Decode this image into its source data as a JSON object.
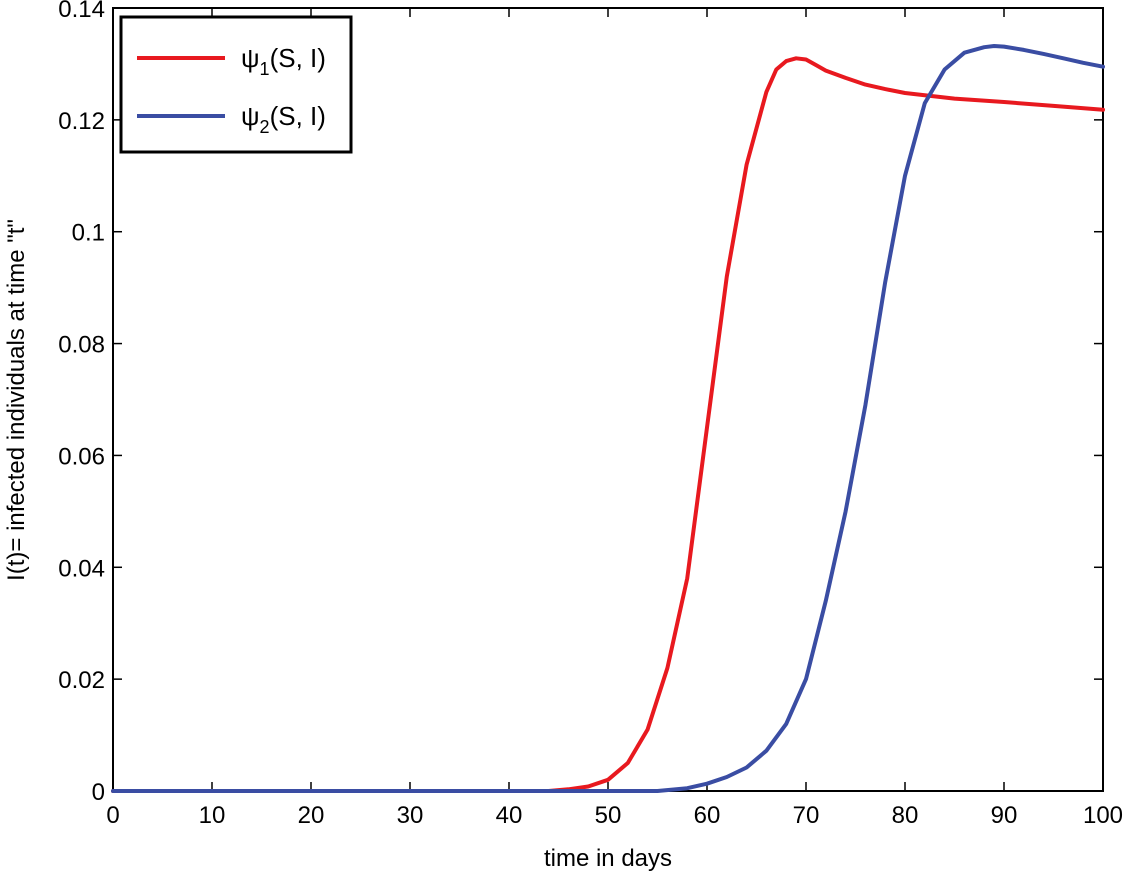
{
  "chart_data": {
    "type": "line",
    "title": "",
    "xlabel": "time in days",
    "ylabel": "I(t)= infected individuals at time \"t\"",
    "xlim": [
      0,
      100
    ],
    "ylim": [
      0,
      0.14
    ],
    "xticks": [
      0,
      10,
      20,
      30,
      40,
      50,
      60,
      70,
      80,
      90,
      100
    ],
    "xtick_labels": [
      "0",
      "10",
      "20",
      "30",
      "40",
      "50",
      "60",
      "70",
      "80",
      "90",
      "100"
    ],
    "yticks": [
      0,
      0.02,
      0.04,
      0.06,
      0.08,
      0.1,
      0.12,
      0.14
    ],
    "ytick_labels": [
      "0",
      "0.02",
      "0.04",
      "0.06",
      "0.08",
      "0.1",
      "0.12",
      "0.14"
    ],
    "grid": false,
    "legend_position": "top-left",
    "series": [
      {
        "name": "ψ1(S, I)",
        "legend_main": "ψ",
        "legend_sub": "1",
        "legend_rest": "(S, I)",
        "color": "#e8191f",
        "x": [
          44,
          46,
          48,
          50,
          52,
          54,
          56,
          58,
          60,
          62,
          64,
          66,
          67,
          68,
          69,
          70,
          71,
          72,
          74,
          76,
          78,
          80,
          85,
          90,
          95,
          100
        ],
        "y": [
          0,
          0.0003,
          0.0008,
          0.002,
          0.005,
          0.011,
          0.022,
          0.038,
          0.065,
          0.092,
          0.112,
          0.125,
          0.129,
          0.1305,
          0.131,
          0.1308,
          0.1298,
          0.1288,
          0.1275,
          0.1263,
          0.1255,
          0.1248,
          0.1238,
          0.1232,
          0.1225,
          0.1218
        ]
      },
      {
        "name": "ψ2(S, I)",
        "legend_main": "ψ",
        "legend_sub": "2",
        "legend_rest": "(S, I)",
        "color": "#3a4da3",
        "x": [
          55,
          58,
          60,
          62,
          64,
          66,
          68,
          70,
          72,
          74,
          76,
          78,
          80,
          82,
          84,
          86,
          88,
          89,
          90,
          92,
          94,
          96,
          98,
          100
        ],
        "y": [
          0,
          0.0005,
          0.0013,
          0.0025,
          0.0042,
          0.0072,
          0.012,
          0.02,
          0.034,
          0.05,
          0.069,
          0.091,
          0.11,
          0.123,
          0.129,
          0.132,
          0.133,
          0.1332,
          0.1331,
          0.1325,
          0.1318,
          0.131,
          0.1302,
          0.1295
        ]
      }
    ]
  }
}
